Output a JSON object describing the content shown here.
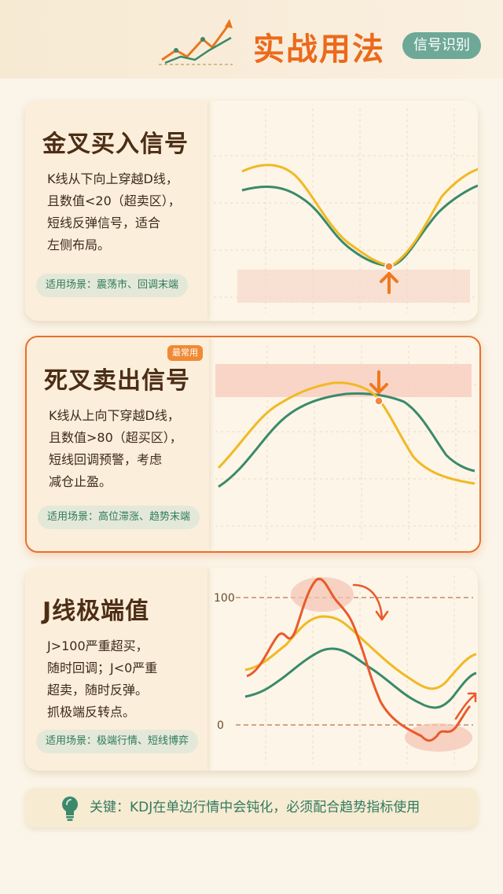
{
  "header": {
    "title": "实战用法",
    "tag": "信号识别"
  },
  "cards": [
    {
      "title": "金叉买入信号",
      "desc": "K线从下向上穿越D线，\n且数值<20（超卖区），\n短线反弹信号，适合\n左侧布局。",
      "scene": "适用场景：震荡市、回调末端"
    },
    {
      "title": "死叉卖出信号",
      "badge": "最常用",
      "desc": "K线从上向下穿越D线，\n且数值>80（超买区），\n短线回调预警，考虑\n减仓止盈。",
      "scene": "适用场景：高位滞涨、趋势末端"
    },
    {
      "title": "J线极端值",
      "desc": "J>100严重超买，\n随时回调；J<0严重\n超卖，随时反弹。\n抓极端反转点。",
      "scene": "适用场景：极端行情、短线博弈",
      "chart_labels": {
        "upper": "100",
        "lower": "0"
      }
    }
  ],
  "tip": {
    "text": "关键：KDJ在单边行情中会钝化，必须配合趋势指标使用"
  },
  "colors": {
    "accent": "#ec6a1c",
    "green": "#2f7a60",
    "k_line": "#f1b922",
    "d_line": "#3a8a6a",
    "j_line": "#ea5a2a"
  },
  "icons": [
    "trend-up-icon",
    "arrow-up-icon",
    "arrow-down-icon",
    "curved-arrow-icon",
    "lightbulb-icon"
  ]
}
